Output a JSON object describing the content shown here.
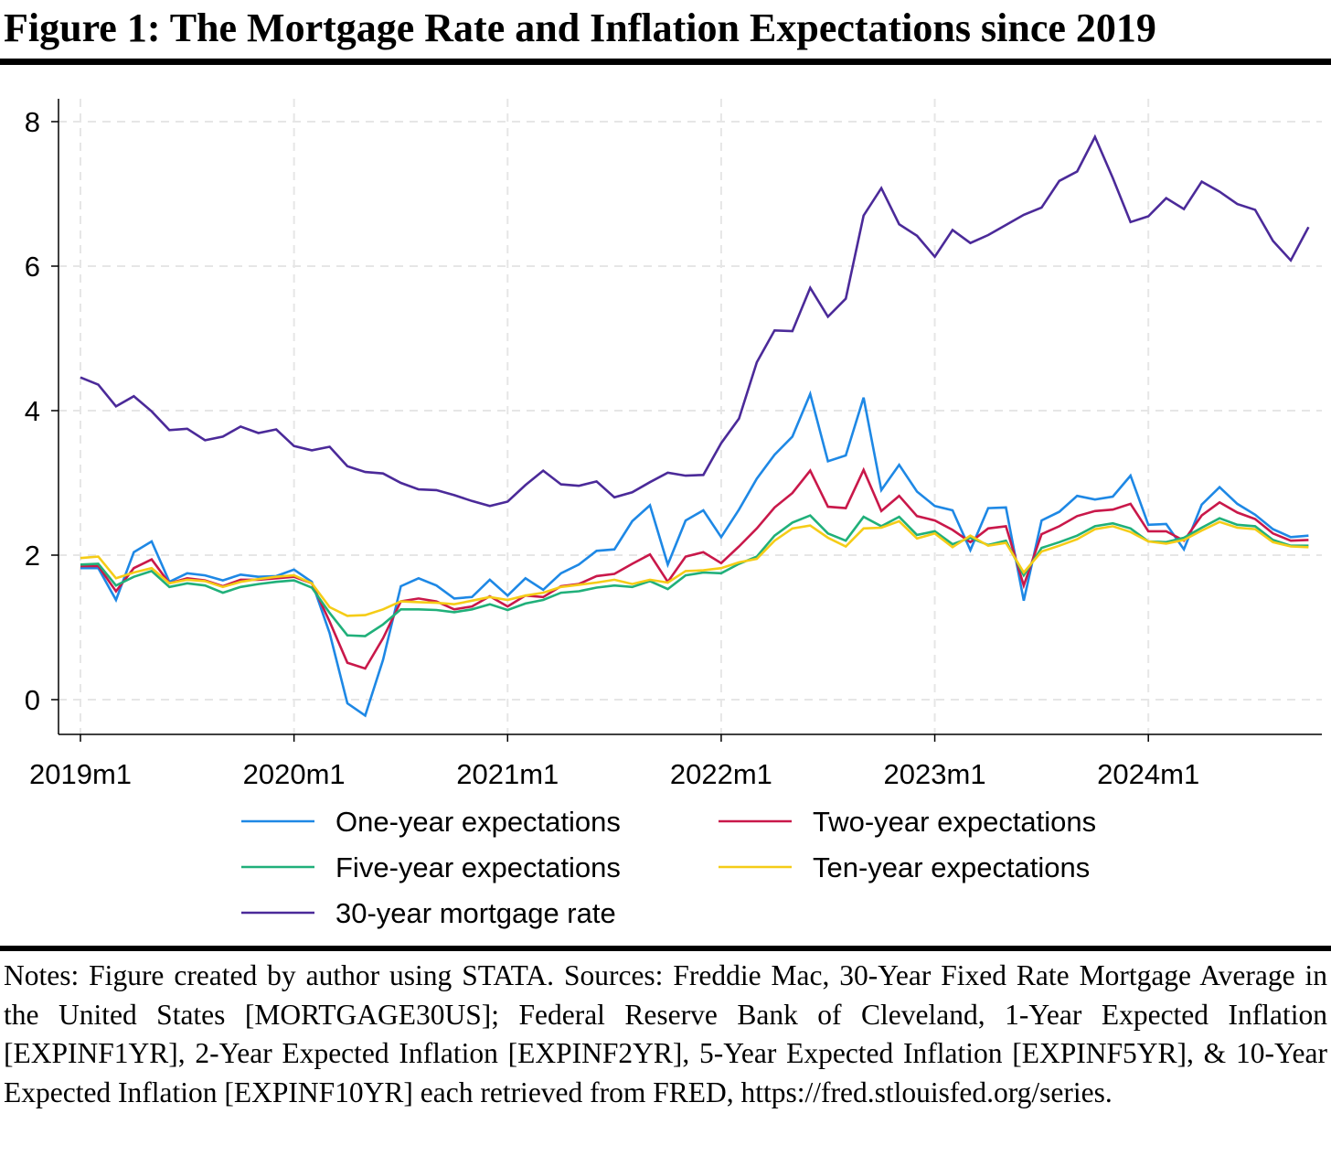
{
  "title": "Figure 1: The Mortgage Rate and Inflation Expectations since 2019",
  "notes": "Notes: Figure created by author using STATA. Sources: Freddie Mac, 30-Year Fixed Rate Mortgage Average in the United States [MORTGAGE30US]; Federal Reserve Bank of Cleveland, 1-Year Expected Inflation [EXPINF1YR], 2-Year Expected Inflation [EXPINF2YR], 5-Year Expected Inflation [EXPINF5YR], & 10-Year Expected Inflation [EXPINF10YR] each retrieved from FRED, https://fred.stlouisfed.org/series.",
  "chart_data": {
    "type": "line",
    "title": "",
    "xlabel": "",
    "ylabel": "",
    "x_start": "2019m1",
    "x_ticks": [
      "2019m1",
      "2020m1",
      "2021m1",
      "2022m1",
      "2023m1",
      "2024m1"
    ],
    "y_ticks": [
      0,
      2,
      4,
      6,
      8
    ],
    "ylim": [
      -0.3,
      8.3
    ],
    "grid": true,
    "legend_position": "bottom",
    "series": [
      {
        "name": "One-year expectations",
        "color": "#1e88e5",
        "values": [
          1.82,
          1.82,
          1.38,
          2.04,
          2.19,
          1.63,
          1.75,
          1.72,
          1.65,
          1.73,
          1.7,
          1.71,
          1.8,
          1.63,
          0.92,
          -0.05,
          -0.22,
          0.55,
          1.57,
          1.68,
          1.58,
          1.4,
          1.42,
          1.66,
          1.44,
          1.68,
          1.52,
          1.75,
          1.87,
          2.06,
          2.08,
          2.47,
          2.69,
          1.87,
          2.48,
          2.62,
          2.25,
          2.63,
          3.06,
          3.39,
          3.64,
          4.23,
          3.3,
          3.38,
          4.18,
          2.9,
          3.25,
          2.88,
          2.68,
          2.62,
          2.07,
          2.65,
          2.66,
          1.37,
          2.48,
          2.6,
          2.82,
          2.77,
          2.81,
          3.1,
          2.42,
          2.43,
          2.08,
          2.7,
          2.94,
          2.71,
          2.56,
          2.36,
          2.25,
          2.27
        ]
      },
      {
        "name": "Two-year expectations",
        "color": "#c9184a",
        "values": [
          1.85,
          1.85,
          1.5,
          1.82,
          1.94,
          1.61,
          1.68,
          1.65,
          1.57,
          1.66,
          1.66,
          1.68,
          1.7,
          1.61,
          1.08,
          0.51,
          0.43,
          0.85,
          1.36,
          1.4,
          1.36,
          1.25,
          1.29,
          1.43,
          1.29,
          1.44,
          1.42,
          1.57,
          1.6,
          1.71,
          1.74,
          1.88,
          2.01,
          1.63,
          1.98,
          2.04,
          1.89,
          2.12,
          2.37,
          2.66,
          2.86,
          3.17,
          2.67,
          2.65,
          3.18,
          2.61,
          2.82,
          2.54,
          2.48,
          2.35,
          2.18,
          2.37,
          2.4,
          1.58,
          2.29,
          2.4,
          2.54,
          2.61,
          2.63,
          2.71,
          2.33,
          2.33,
          2.2,
          2.55,
          2.73,
          2.59,
          2.5,
          2.3,
          2.2,
          2.21
        ]
      },
      {
        "name": "Five-year expectations",
        "color": "#20b07a",
        "values": [
          1.87,
          1.88,
          1.58,
          1.7,
          1.78,
          1.56,
          1.61,
          1.58,
          1.48,
          1.56,
          1.6,
          1.63,
          1.65,
          1.55,
          1.2,
          0.89,
          0.88,
          1.04,
          1.25,
          1.25,
          1.24,
          1.21,
          1.25,
          1.32,
          1.24,
          1.33,
          1.38,
          1.48,
          1.5,
          1.55,
          1.58,
          1.56,
          1.64,
          1.53,
          1.72,
          1.76,
          1.75,
          1.88,
          1.98,
          2.27,
          2.45,
          2.55,
          2.3,
          2.2,
          2.53,
          2.4,
          2.53,
          2.28,
          2.33,
          2.15,
          2.24,
          2.14,
          2.2,
          1.72,
          2.1,
          2.18,
          2.27,
          2.4,
          2.44,
          2.37,
          2.19,
          2.18,
          2.24,
          2.38,
          2.51,
          2.42,
          2.4,
          2.21,
          2.13,
          2.13
        ]
      },
      {
        "name": "Ten-year expectations",
        "color": "#f5cc17",
        "values": [
          1.96,
          1.98,
          1.68,
          1.76,
          1.82,
          1.61,
          1.66,
          1.64,
          1.56,
          1.63,
          1.67,
          1.7,
          1.72,
          1.61,
          1.28,
          1.16,
          1.17,
          1.25,
          1.36,
          1.35,
          1.34,
          1.32,
          1.37,
          1.42,
          1.38,
          1.44,
          1.48,
          1.56,
          1.59,
          1.62,
          1.66,
          1.6,
          1.66,
          1.62,
          1.78,
          1.79,
          1.82,
          1.9,
          1.95,
          2.2,
          2.37,
          2.41,
          2.24,
          2.12,
          2.37,
          2.38,
          2.47,
          2.23,
          2.3,
          2.11,
          2.27,
          2.13,
          2.17,
          1.76,
          2.05,
          2.13,
          2.22,
          2.36,
          2.4,
          2.32,
          2.19,
          2.16,
          2.21,
          2.34,
          2.46,
          2.38,
          2.36,
          2.18,
          2.12,
          2.11
        ]
      },
      {
        "name": "30-year mortgage rate",
        "color": "#4b2a99",
        "values": [
          4.46,
          4.36,
          4.06,
          4.2,
          3.99,
          3.73,
          3.75,
          3.59,
          3.64,
          3.78,
          3.69,
          3.74,
          3.51,
          3.45,
          3.5,
          3.23,
          3.15,
          3.13,
          3.0,
          2.91,
          2.9,
          2.83,
          2.75,
          2.68,
          2.74,
          2.97,
          3.17,
          2.98,
          2.96,
          3.02,
          2.8,
          2.87,
          3.01,
          3.14,
          3.1,
          3.11,
          3.55,
          3.89,
          4.67,
          5.11,
          5.1,
          5.7,
          5.3,
          5.55,
          6.7,
          7.08,
          6.58,
          6.42,
          6.13,
          6.5,
          6.32,
          6.43,
          6.57,
          6.71,
          6.81,
          7.18,
          7.31,
          7.79,
          7.22,
          6.61,
          6.69,
          6.94,
          6.79,
          7.17,
          7.03,
          6.86,
          6.78,
          6.35,
          6.08,
          6.54
        ]
      }
    ]
  }
}
